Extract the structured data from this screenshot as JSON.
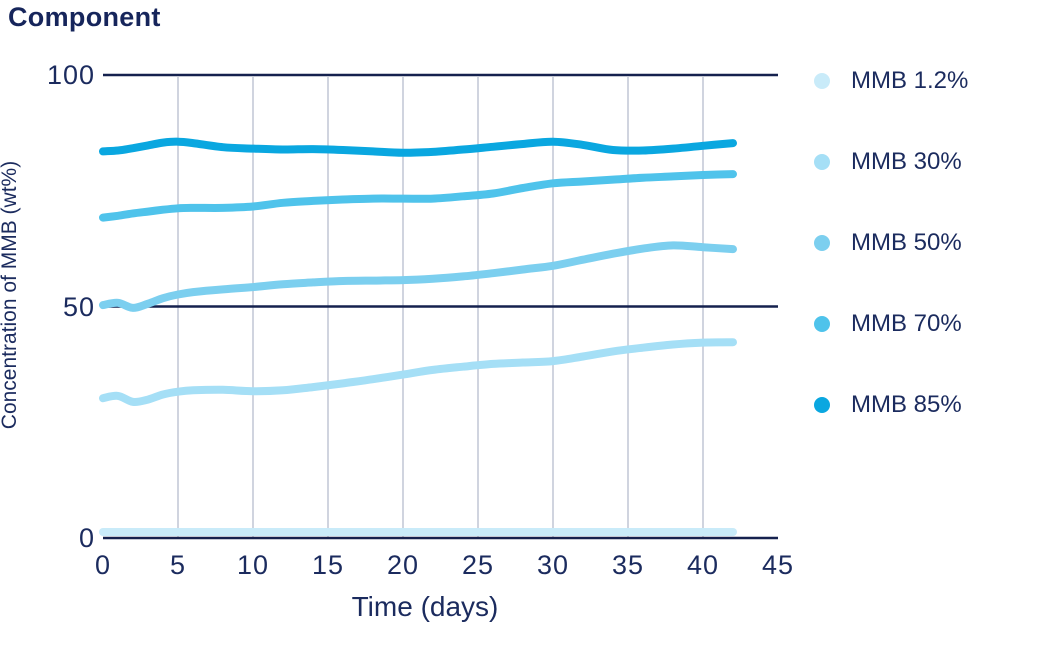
{
  "title": "Component",
  "colors": {
    "text": "#1B2B5E",
    "axis_line": "#15214E",
    "gridline": "#D0D4DF",
    "background": "#FFFFFF"
  },
  "chart_data": {
    "type": "line",
    "title": "Component",
    "xlabel": "Time (days)",
    "ylabel": "Concentration of MMB (wt%)",
    "xlim": [
      0,
      45
    ],
    "ylim": [
      0,
      100
    ],
    "x_ticks": [
      0,
      5,
      10,
      15,
      20,
      25,
      30,
      35,
      40,
      45
    ],
    "y_ticks": [
      0,
      50,
      100
    ],
    "grid_x": [
      5,
      10,
      15,
      20,
      25,
      30,
      35,
      40
    ],
    "grid": "vertical light gridlines at 5-day steps; horizontal navy rules at y=0,50,100",
    "legend_position": "right",
    "line_width": 8,
    "x_days": [
      0,
      1,
      2,
      3,
      4,
      5,
      6,
      8,
      10,
      12,
      14,
      16,
      18,
      20,
      22,
      24,
      26,
      28,
      30,
      32,
      34,
      36,
      38,
      40,
      42
    ],
    "series": [
      {
        "name": "MMB 1.2%",
        "color": "#C9EBF9",
        "values": [
          1.3,
          1.3,
          1.3,
          1.3,
          1.3,
          1.3,
          1.3,
          1.3,
          1.3,
          1.3,
          1.3,
          1.3,
          1.3,
          1.3,
          1.3,
          1.3,
          1.3,
          1.3,
          1.3,
          1.3,
          1.3,
          1.3,
          1.3,
          1.3,
          1.3
        ]
      },
      {
        "name": "MMB 30%",
        "color": "#A5DFF6",
        "values": [
          30.2,
          30.7,
          29.4,
          29.9,
          31.0,
          31.6,
          31.9,
          32.0,
          31.7,
          31.9,
          32.6,
          33.4,
          34.3,
          35.3,
          36.3,
          37.0,
          37.6,
          37.9,
          38.2,
          39.2,
          40.3,
          41.1,
          41.8,
          42.2,
          42.3
        ]
      },
      {
        "name": "MMB 50%",
        "color": "#7CCFEF",
        "values": [
          50.3,
          50.8,
          49.7,
          50.6,
          51.8,
          52.6,
          53.1,
          53.7,
          54.2,
          54.8,
          55.2,
          55.5,
          55.6,
          55.7,
          56.0,
          56.5,
          57.2,
          58.0,
          58.8,
          60.1,
          61.4,
          62.5,
          63.2,
          62.8,
          62.4
        ]
      },
      {
        "name": "MMB 70%",
        "color": "#4FC3EB",
        "values": [
          69.2,
          69.6,
          70.1,
          70.5,
          70.9,
          71.2,
          71.3,
          71.3,
          71.6,
          72.4,
          72.8,
          73.1,
          73.3,
          73.3,
          73.3,
          73.8,
          74.4,
          75.6,
          76.6,
          77.0,
          77.4,
          77.8,
          78.1,
          78.4,
          78.6
        ]
      },
      {
        "name": "MMB 85%",
        "color": "#0AA7E0",
        "values": [
          83.5,
          83.7,
          84.2,
          84.8,
          85.4,
          85.6,
          85.3,
          84.4,
          84.1,
          83.9,
          84.0,
          83.8,
          83.5,
          83.2,
          83.4,
          83.9,
          84.5,
          85.1,
          85.6,
          84.9,
          83.8,
          83.7,
          84.1,
          84.7,
          85.3
        ]
      }
    ]
  }
}
